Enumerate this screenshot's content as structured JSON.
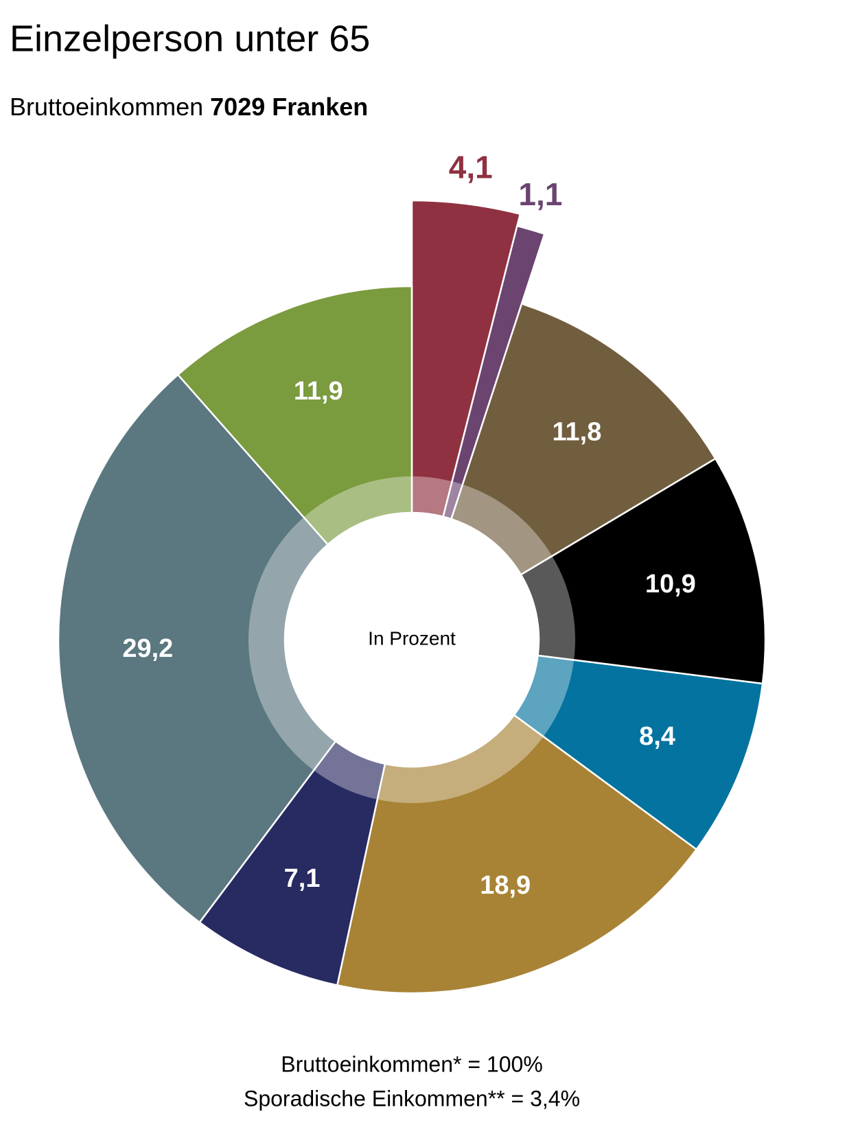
{
  "chart_data": {
    "type": "donut",
    "title": "Einzelperson unter 65",
    "subtitle": "Bruttoeinkommen",
    "subtitle_bold": "7029 Franken",
    "center_label": "In Prozent",
    "footnotes": [
      "Bruttoeinkommen* = 100%",
      "Sporadische Einkommen**  = 3,4%"
    ],
    "values": [
      4.1,
      1.1,
      11.8,
      10.9,
      8.4,
      18.9,
      7.1,
      29.2,
      11.9
    ],
    "value_labels": [
      "4,1",
      "1,1",
      "11,8",
      "10,9",
      "8,4",
      "18,9",
      "7,1",
      "29,2",
      "11,9"
    ],
    "colors": [
      "#8f3140",
      "#6b4470",
      "#715e3f",
      "#000000",
      "#05739f",
      "#a88336",
      "#282a62",
      "#5b7780",
      "#7b9b3f"
    ],
    "exploded": [
      true,
      true,
      false,
      false,
      false,
      false,
      false,
      false,
      false
    ]
  }
}
